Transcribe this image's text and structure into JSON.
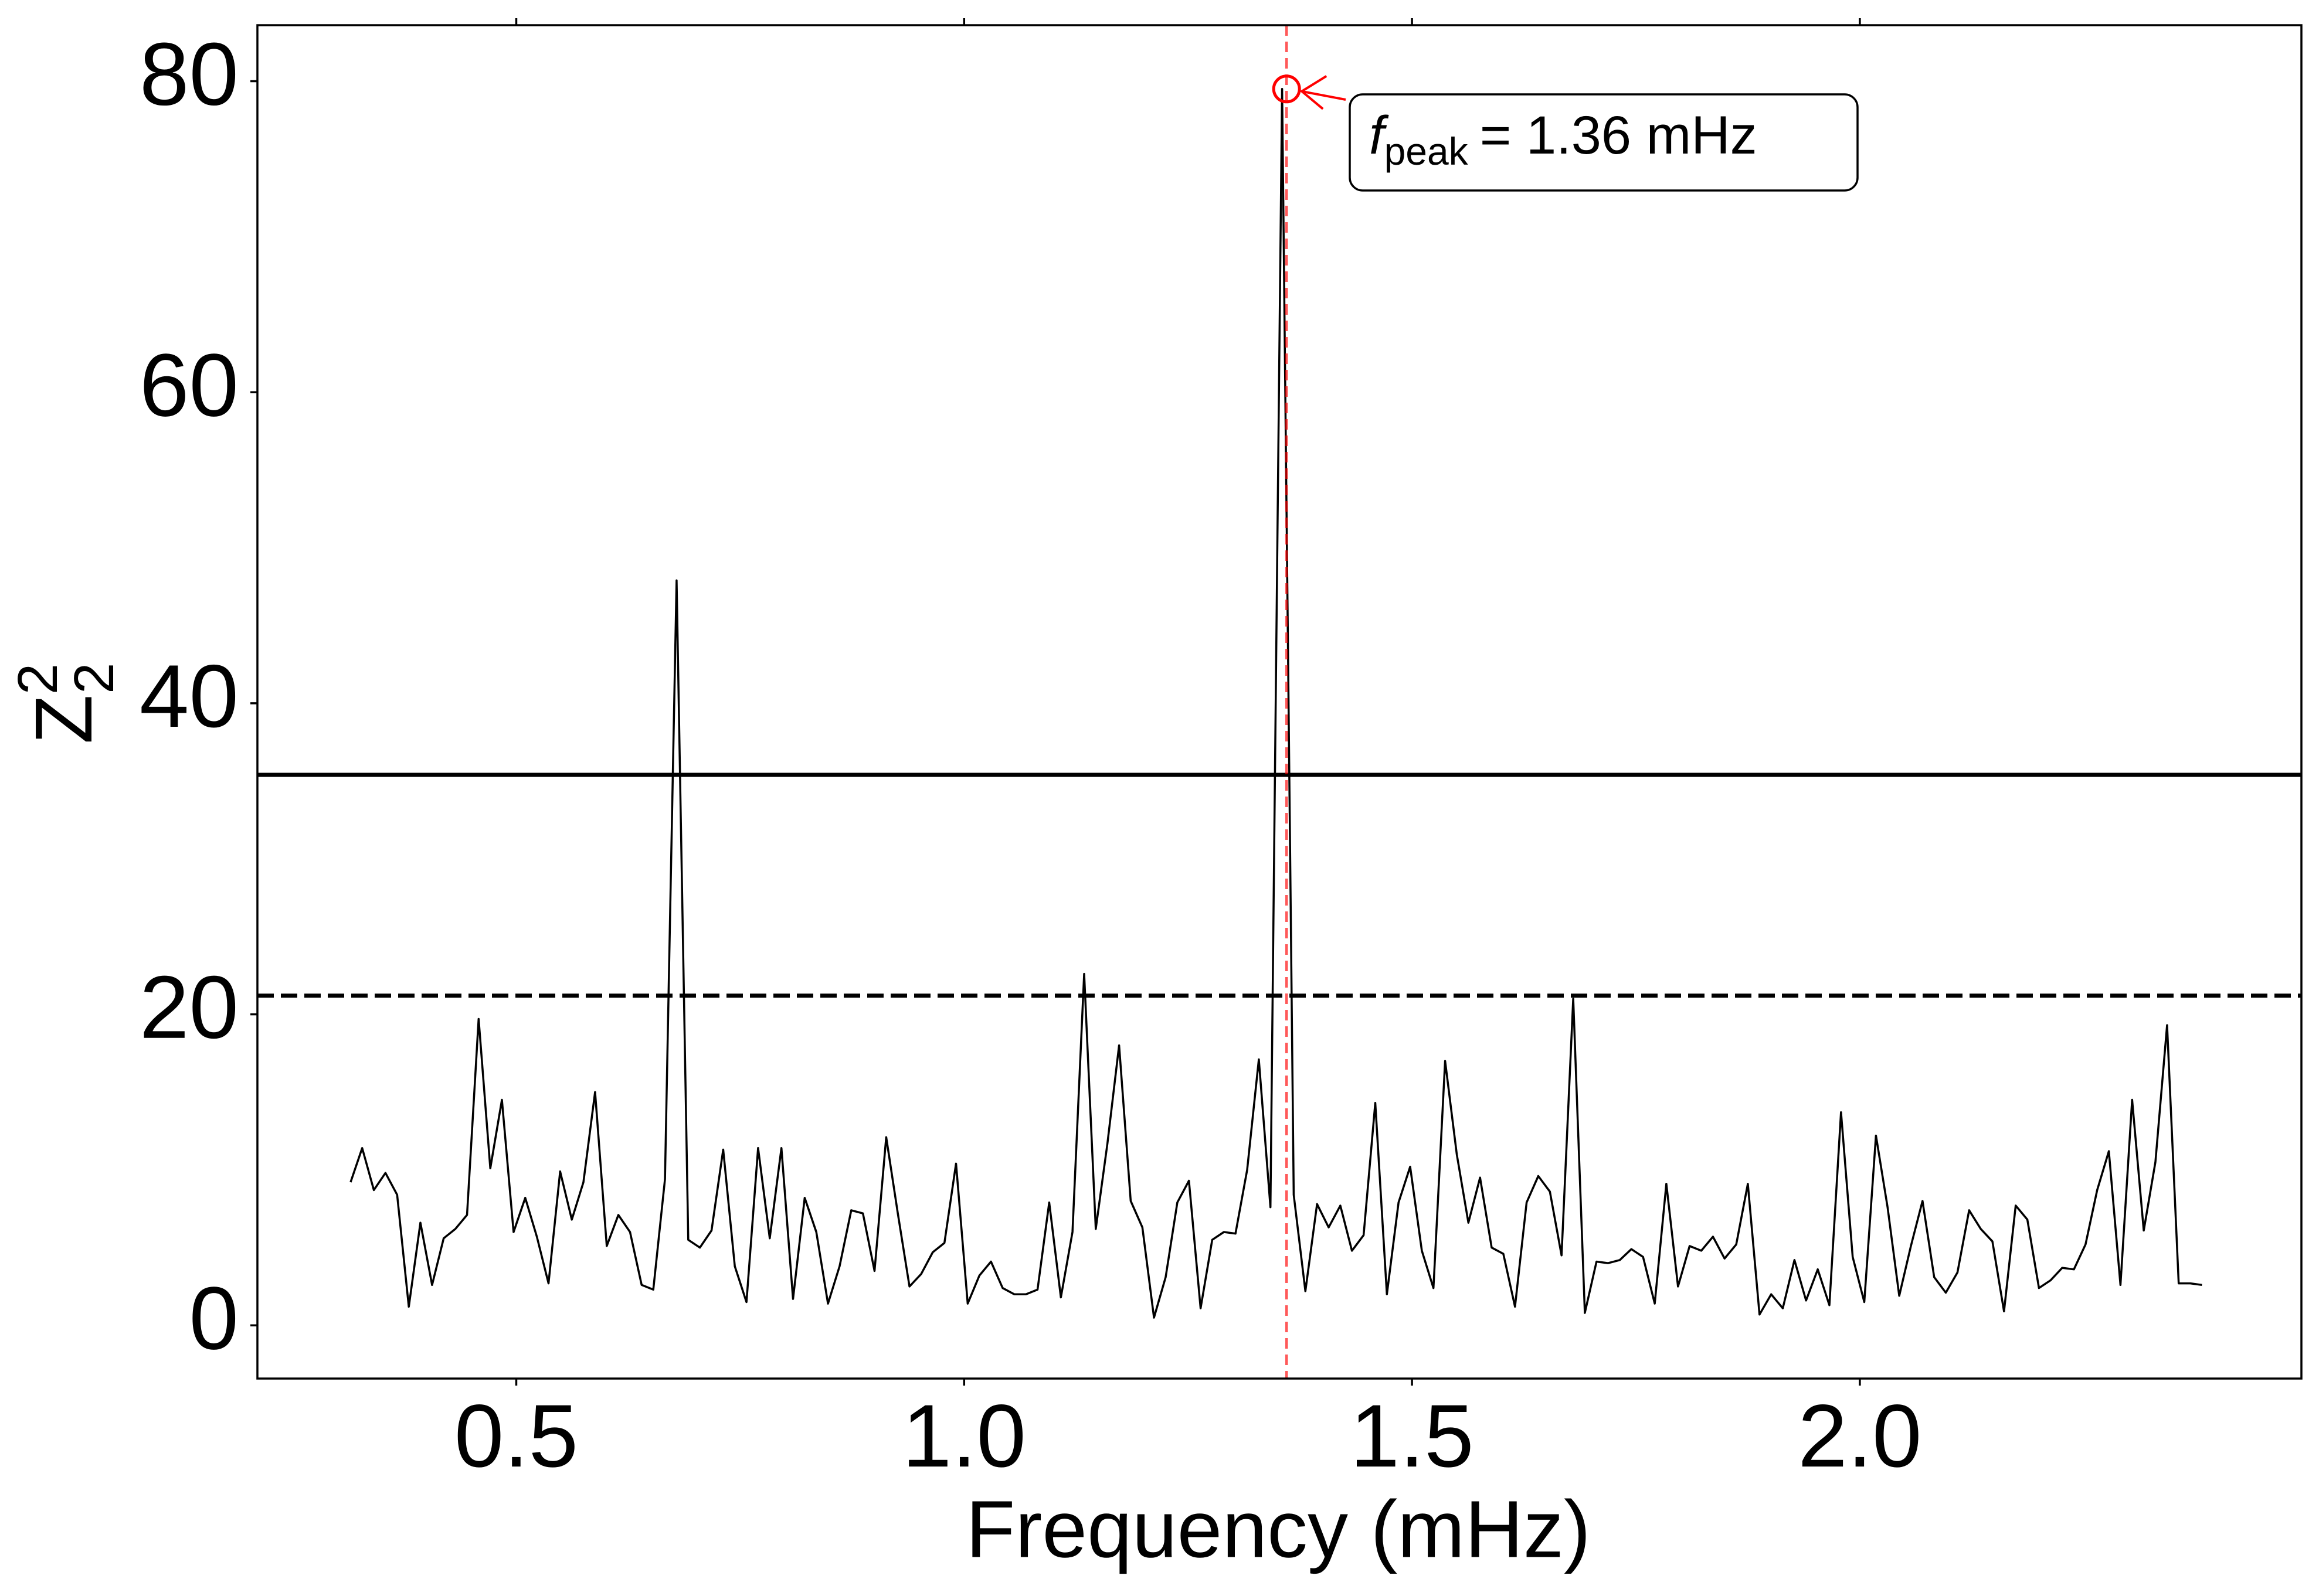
{
  "chart_data": {
    "type": "line",
    "xlabel": "Frequency (mHz)",
    "ylabel": {
      "base": "Z",
      "sub": "2",
      "sup": "2"
    },
    "color": "#000000",
    "x": [
      0.315,
      0.328,
      0.341,
      0.354,
      0.367,
      0.38,
      0.393,
      0.406,
      0.419,
      0.432,
      0.445,
      0.458,
      0.471,
      0.484,
      0.497,
      0.51,
      0.523,
      0.536,
      0.549,
      0.562,
      0.575,
      0.588,
      0.601,
      0.614,
      0.627,
      0.64,
      0.653,
      0.666,
      0.679,
      0.692,
      0.705,
      0.718,
      0.731,
      0.744,
      0.757,
      0.77,
      0.783,
      0.796,
      0.809,
      0.822,
      0.835,
      0.848,
      0.861,
      0.874,
      0.887,
      0.9,
      0.913,
      0.926,
      0.939,
      0.952,
      0.965,
      0.978,
      0.991,
      1.004,
      1.017,
      1.03,
      1.043,
      1.056,
      1.069,
      1.082,
      1.095,
      1.108,
      1.121,
      1.134,
      1.147,
      1.16,
      1.173,
      1.186,
      1.199,
      1.212,
      1.225,
      1.238,
      1.251,
      1.264,
      1.277,
      1.29,
      1.303,
      1.316,
      1.329,
      1.342,
      1.355,
      1.368,
      1.381,
      1.394,
      1.407,
      1.42,
      1.433,
      1.446,
      1.459,
      1.472,
      1.485,
      1.498,
      1.511,
      1.524,
      1.537,
      1.55,
      1.563,
      1.576,
      1.589,
      1.602,
      1.615,
      1.628,
      1.641,
      1.654,
      1.667,
      1.68,
      1.693,
      1.706,
      1.719,
      1.732,
      1.745,
      1.758,
      1.771,
      1.784,
      1.797,
      1.81,
      1.823,
      1.836,
      1.849,
      1.862,
      1.875,
      1.888,
      1.901,
      1.914,
      1.927,
      1.94,
      1.953,
      1.966,
      1.979,
      1.992,
      2.005,
      2.018,
      2.031,
      2.044,
      2.057,
      2.07,
      2.083,
      2.096,
      2.109,
      2.122,
      2.135,
      2.148,
      2.161,
      2.174,
      2.187,
      2.2,
      2.213,
      2.226,
      2.239,
      2.252,
      2.265,
      2.278,
      2.291,
      2.304,
      2.317,
      2.33,
      2.343,
      2.356,
      2.369,
      2.382
    ],
    "values": [
      9.2,
      11.4,
      8.7,
      9.8,
      8.4,
      1.2,
      6.6,
      2.6,
      5.6,
      6.2,
      7.1,
      19.7,
      10.1,
      14.5,
      6.0,
      8.2,
      5.7,
      2.7,
      9.9,
      6.8,
      9.2,
      15.0,
      5.1,
      7.1,
      6.0,
      2.6,
      2.3,
      9.4,
      47.9,
      5.5,
      5.0,
      6.1,
      11.3,
      3.8,
      1.5,
      11.4,
      5.6,
      11.4,
      1.7,
      8.2,
      6.0,
      1.4,
      3.8,
      7.4,
      7.2,
      3.5,
      12.1,
      7.2,
      2.5,
      3.3,
      4.7,
      5.3,
      10.4,
      1.4,
      3.2,
      4.1,
      2.4,
      2.0,
      2.0,
      2.3,
      7.9,
      1.8,
      6.0,
      22.6,
      6.2,
      11.7,
      18.0,
      8.0,
      6.3,
      0.5,
      3.1,
      7.9,
      9.3,
      1.1,
      5.5,
      6.0,
      5.9,
      10.0,
      17.1,
      7.6,
      79.5,
      8.4,
      2.2,
      7.8,
      6.3,
      7.7,
      4.8,
      5.8,
      14.3,
      2.0,
      7.9,
      10.2,
      4.8,
      2.4,
      17.0,
      11.0,
      6.6,
      9.5,
      5.0,
      4.6,
      1.2,
      7.9,
      9.6,
      8.6,
      4.5,
      21.0,
      0.8,
      4.1,
      4.0,
      4.2,
      4.9,
      4.4,
      1.4,
      9.1,
      2.5,
      5.1,
      4.8,
      5.7,
      4.3,
      5.2,
      9.1,
      0.7,
      2.0,
      1.1,
      4.2,
      1.6,
      3.6,
      1.3,
      13.7,
      4.4,
      1.5,
      12.2,
      7.6,
      1.9,
      5.1,
      8.0,
      3.1,
      2.1,
      3.4,
      7.4,
      6.2,
      5.4,
      0.9,
      7.7,
      6.8,
      2.4,
      2.9,
      3.7,
      3.6,
      5.2,
      8.7,
      11.2,
      2.6,
      14.5,
      6.1,
      10.5,
      19.3,
      2.7,
      2.7,
      2.6
    ],
    "thresholds": [
      {
        "value": 35.4,
        "style": "solid"
      },
      {
        "value": 21.2,
        "style": "dashed"
      }
    ],
    "peak": {
      "x": 1.36,
      "y": 79.5,
      "color": "#ff0000",
      "symbol": "f",
      "subscript": "peak",
      "text": "= 1.36 mHz"
    },
    "xlim": [
      0.211,
      2.493
    ],
    "ylim": [
      -3.42,
      83.6
    ],
    "xticks": [
      0.5,
      {
        "value": 1,
        "label": "1.0"
      },
      1.5,
      {
        "value": 2,
        "label": "2.0"
      }
    ],
    "yticks": [
      0,
      20,
      40,
      60,
      80
    ]
  }
}
